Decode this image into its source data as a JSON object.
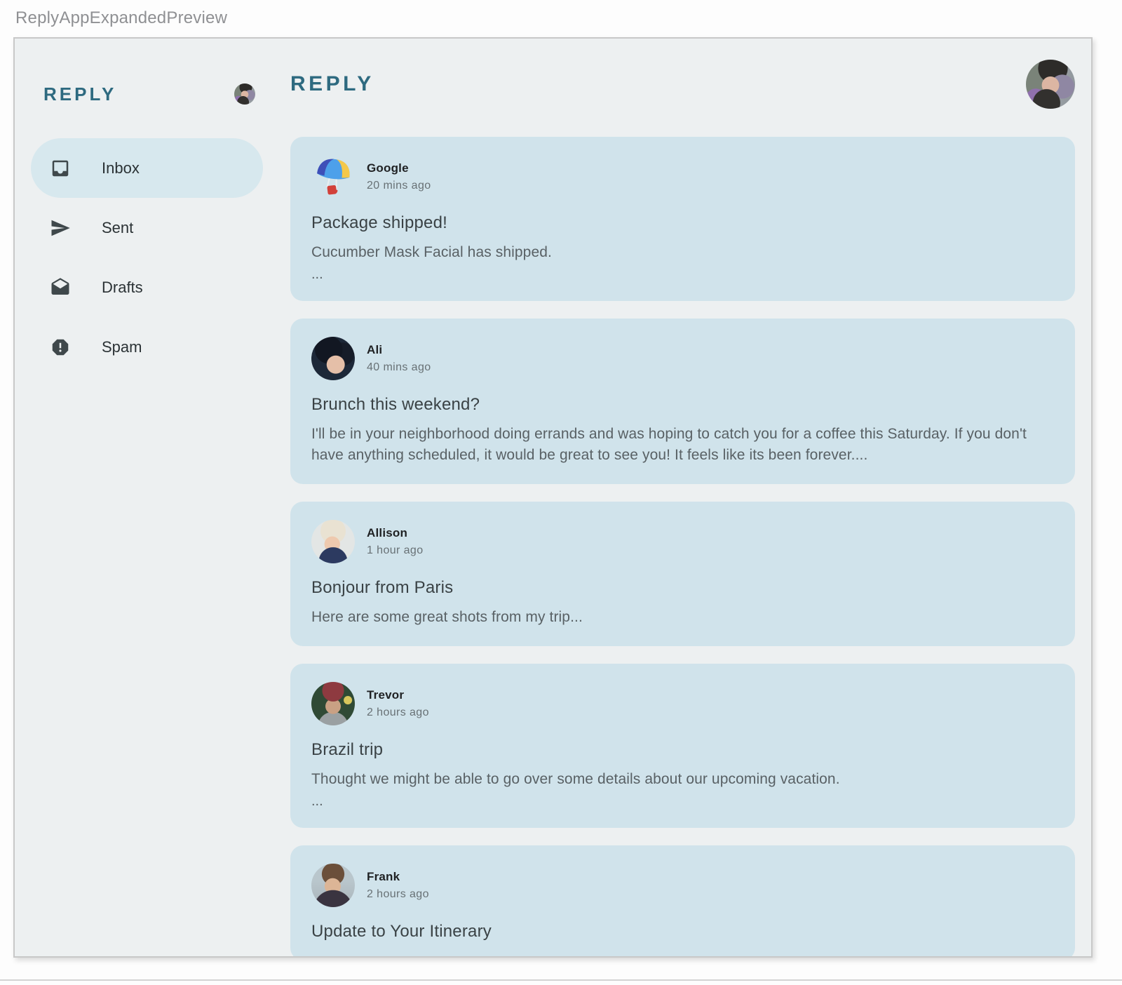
{
  "preview": {
    "title": "ReplyAppExpandedPreview"
  },
  "colors": {
    "accent": "#2E6A80",
    "panel_bg": "#EDF0F1",
    "card_bg": "#D0E3EB",
    "selected_bg": "#D7E8EE",
    "icon": "#3F484B"
  },
  "sidebar": {
    "logo": "REPLY",
    "items": [
      {
        "label": "Inbox",
        "icon": "inbox-icon",
        "selected": true
      },
      {
        "label": "Sent",
        "icon": "send-icon",
        "selected": false
      },
      {
        "label": "Drafts",
        "icon": "drafts-icon",
        "selected": false
      },
      {
        "label": "Spam",
        "icon": "report-icon",
        "selected": false
      }
    ]
  },
  "header": {
    "title": "REPLY"
  },
  "emails": [
    {
      "sender": "Google",
      "time": "20 mins ago",
      "subject": "Package shipped!",
      "body": "Cucumber Mask Facial has shipped.",
      "ellipsis": "...",
      "avatar": "google"
    },
    {
      "sender": "Ali",
      "time": "40 mins ago",
      "subject": "Brunch this weekend?",
      "body": "I'll be in your neighborhood doing errands and was hoping to catch you for a coffee this Saturday. If you don't have anything scheduled, it would be great to see you! It feels like its been forever....",
      "ellipsis": "",
      "avatar": "ali"
    },
    {
      "sender": "Allison",
      "time": "1 hour ago",
      "subject": "Bonjour from Paris",
      "body": "Here are some great shots from my trip...",
      "ellipsis": "",
      "avatar": "allison"
    },
    {
      "sender": "Trevor",
      "time": "2 hours ago",
      "subject": "Brazil trip",
      "body": "Thought we might be able to go over some details about our upcoming vacation.",
      "ellipsis": "...",
      "avatar": "trevor"
    },
    {
      "sender": "Frank",
      "time": "2 hours ago",
      "subject": "Update to Your Itinerary",
      "body": "",
      "ellipsis": "",
      "avatar": "frank"
    }
  ]
}
